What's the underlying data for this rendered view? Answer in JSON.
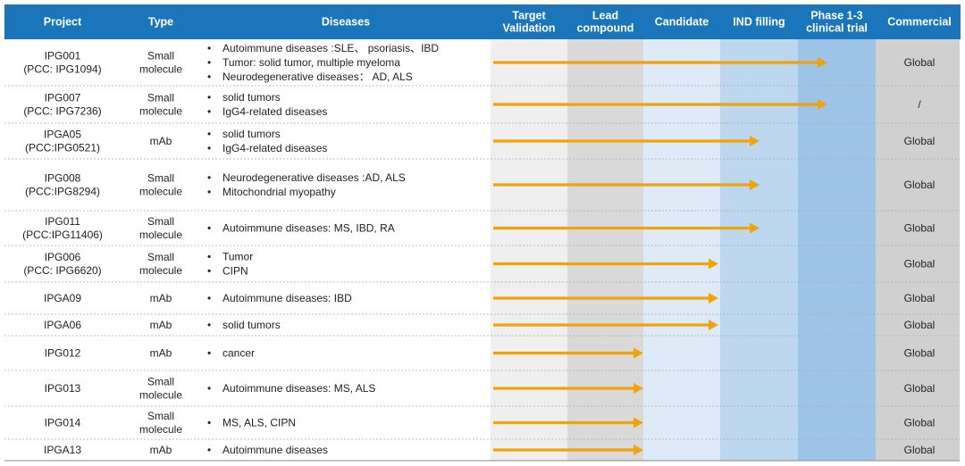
{
  "table": {
    "headers": {
      "project": "Project",
      "type": "Type",
      "diseases": "Diseases",
      "target_validation": [
        "Target",
        "Validation"
      ],
      "lead_compound": [
        "Lead",
        "compound"
      ],
      "candidate": "Candidate",
      "ind_filling": "IND filling",
      "phase": [
        "Phase 1-3",
        "clinical trial"
      ],
      "commercial": "Commercial"
    },
    "stages": [
      "Target Validation",
      "Lead compound",
      "Candidate",
      "IND filling",
      "Phase 1-3 clinical trial"
    ],
    "colors": {
      "header_bg": "#1B75BB",
      "arrow": "#F0A30A",
      "stage_target": "#EFEFEF",
      "stage_lead": "#D9D9D9",
      "stage_candidate": "#DEEBF7",
      "stage_ind": "#BDD7EE",
      "stage_phase": "#9DC3E6",
      "commercial": "#D0D0D0",
      "divider": "#AAAAAA"
    }
  },
  "chart_data": {
    "type": "table",
    "rows": [
      {
        "project": [
          "IPG001",
          "(PCC: IPG1094)"
        ],
        "type": [
          "Small",
          "molecule"
        ],
        "diseases": [
          "Autoimmune diseases :SLE、 psoriasis、IBD",
          "Tumor: solid tumor, multiple myeloma",
          "Neurodegenerative diseases： AD, ALS"
        ],
        "stage_reached": "Phase 1-3 clinical trial",
        "commercial": "Global"
      },
      {
        "project": [
          "IPG007",
          "(PCC: IPG7236)"
        ],
        "type": [
          "Small",
          "molecule"
        ],
        "diseases": [
          "solid tumors",
          "IgG4-related diseases"
        ],
        "stage_reached": "Phase 1-3 clinical trial",
        "commercial": "/"
      },
      {
        "project": [
          "IPGA05",
          "(PCC:IPG0521)"
        ],
        "type": [
          "mAb"
        ],
        "diseases": [
          "solid tumors",
          "IgG4-related diseases"
        ],
        "stage_reached": "IND filling",
        "commercial": "Global"
      },
      {
        "project": [
          "IPG008",
          "(PCC:IPG8294)"
        ],
        "type": [
          "Small",
          "molecule"
        ],
        "diseases": [
          "Neurodegenerative diseases :AD, ALS",
          "Mitochondrial myopathy"
        ],
        "stage_reached": "IND filling",
        "commercial": "Global"
      },
      {
        "project": [
          "IPG011",
          "(PCC:IPG11406)"
        ],
        "type": [
          "Small",
          "molecule"
        ],
        "diseases": [
          "Autoimmune diseases: MS, IBD, RA"
        ],
        "stage_reached": "IND filling",
        "commercial": "Global"
      },
      {
        "project": [
          "IPG006",
          "(PCC: IPG6620)"
        ],
        "type": [
          "Small",
          "molecule"
        ],
        "diseases": [
          "Tumor",
          "CIPN"
        ],
        "stage_reached": "Candidate",
        "commercial": "Global"
      },
      {
        "project": [
          "IPGA09"
        ],
        "type": [
          "mAb"
        ],
        "diseases": [
          "Autoimmune diseases: IBD"
        ],
        "stage_reached": "Candidate",
        "commercial": "Global"
      },
      {
        "project": [
          "IPGA06"
        ],
        "type": [
          "mAb"
        ],
        "diseases": [
          "solid tumors"
        ],
        "stage_reached": "Candidate",
        "commercial": "Global"
      },
      {
        "project": [
          "IPG012"
        ],
        "type": [
          "mAb"
        ],
        "diseases": [
          "cancer"
        ],
        "stage_reached": "Lead compound",
        "commercial": "Global"
      },
      {
        "project": [
          "IPG013"
        ],
        "type": [
          "Small",
          "molecule"
        ],
        "diseases": [
          "Autoimmune diseases: MS, ALS"
        ],
        "stage_reached": "Lead compound",
        "commercial": "Global"
      },
      {
        "project": [
          "IPG014"
        ],
        "type": [
          "Small",
          "molecule"
        ],
        "diseases": [
          "MS, ALS, CIPN"
        ],
        "stage_reached": "Lead compound",
        "commercial": "Global"
      },
      {
        "project": [
          "IPGA13"
        ],
        "type": [
          "mAb"
        ],
        "diseases": [
          "Autoimmune diseases"
        ],
        "stage_reached": "Lead compound",
        "commercial": "Global"
      }
    ]
  }
}
